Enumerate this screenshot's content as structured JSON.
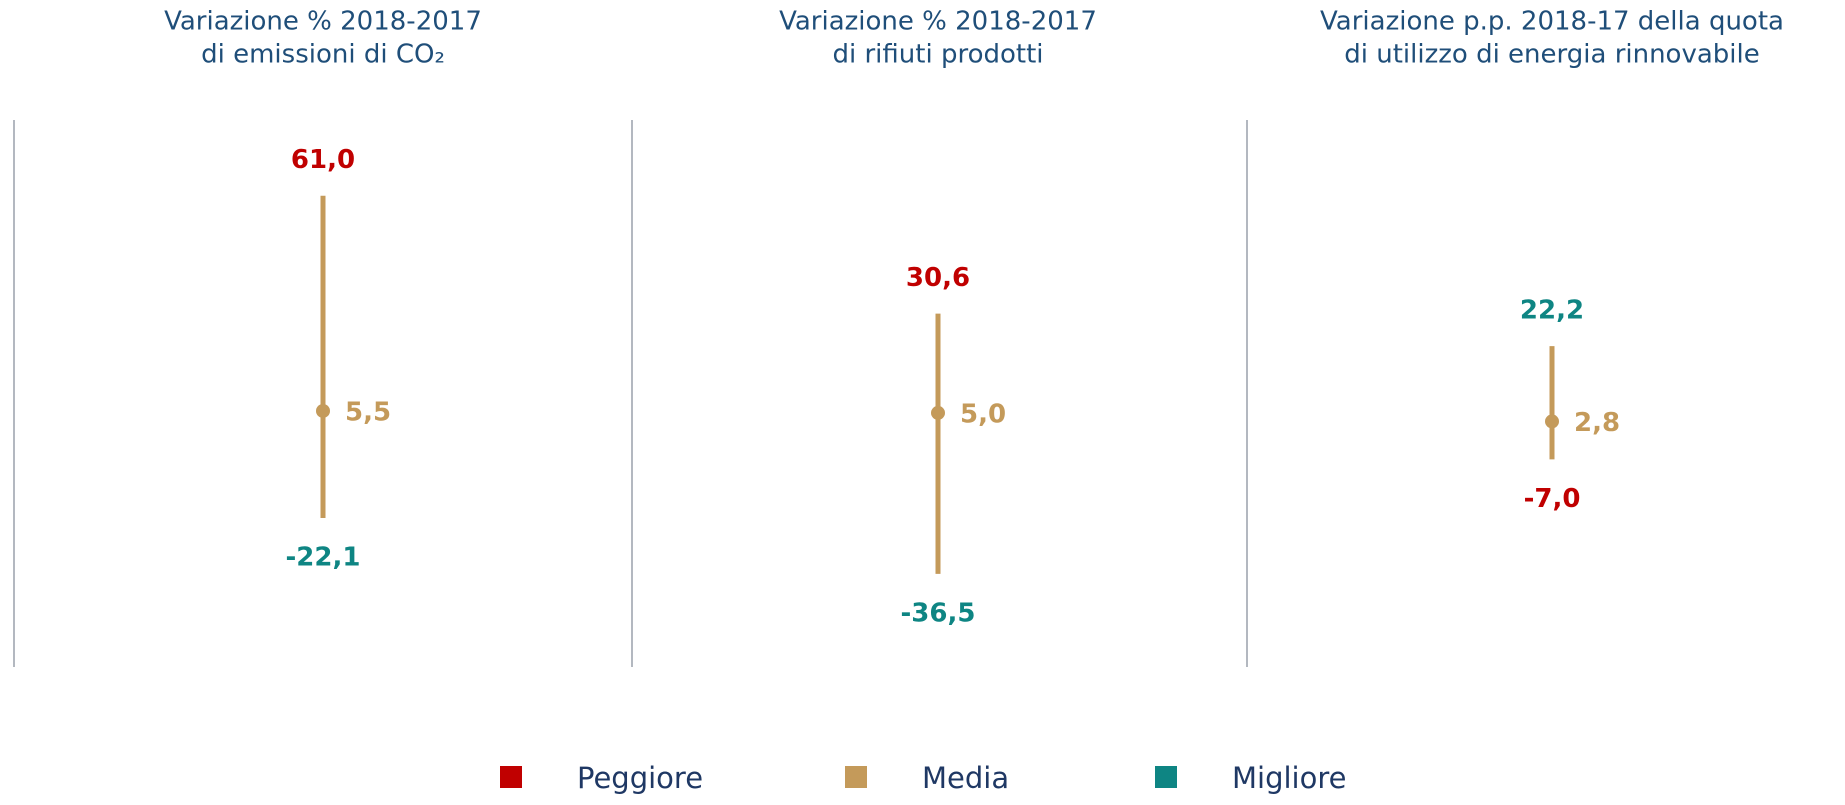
{
  "chart_data": {
    "type": "range",
    "categories": [
      [
        "Variazione % 2018-2017",
        "di emissioni di CO₂"
      ],
      [
        "Variazione % 2018-2017",
        "di rifiuti prodotti"
      ],
      [
        "Variazione p.p. 2018-17 della quota",
        "di utilizzo di energia rinnovabile"
      ]
    ],
    "series": [
      {
        "name": "Peggiore",
        "color": "#c00000",
        "values": [
          61.0,
          30.6,
          -7.0
        ],
        "value_labels": [
          "61,0",
          "30,6",
          "-7,0"
        ]
      },
      {
        "name": "Media",
        "color": "#c49a5a",
        "values": [
          5.5,
          5.0,
          2.8
        ],
        "value_labels": [
          "5,5",
          "5,0",
          "2,8"
        ]
      },
      {
        "name": "Migliore",
        "color": "#0e8583",
        "values": [
          -22.1,
          -36.5,
          22.2
        ],
        "value_labels": [
          "-22,1",
          "-36,5",
          "22,2"
        ]
      }
    ],
    "ylim": [
      -60,
      80
    ]
  }
}
